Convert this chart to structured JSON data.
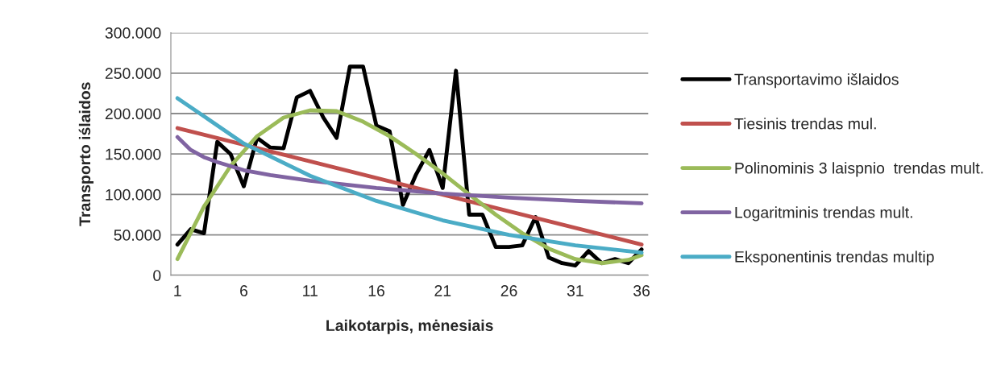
{
  "chart_data": {
    "type": "line",
    "xlabel": "Laikotarpis, mėnesiais",
    "ylabel": "Transporto iślaidos",
    "xlim": [
      0.5,
      36.5
    ],
    "xticks": [
      1,
      6,
      11,
      16,
      21,
      26,
      31,
      36
    ],
    "ylim": [
      0,
      300000
    ],
    "yticks": [
      0,
      {
        "value": 50000,
        "label": "50.000"
      },
      {
        "value": 100000,
        "label": "100.000"
      },
      {
        "value": 150000,
        "label": "150.000"
      },
      {
        "value": 200000,
        "label": "200.000"
      },
      {
        "value": 250000,
        "label": "250.000"
      },
      {
        "value": 300000,
        "label": "300.000"
      }
    ],
    "grid": "y",
    "legend": "right",
    "marker": "none",
    "line_style": "solid",
    "series": [
      {
        "name": "Transportavimo išlaidos",
        "color": "#000000",
        "x": [
          1,
          2,
          3,
          4,
          5,
          6,
          7,
          8,
          9,
          10,
          11,
          12,
          13,
          14,
          15,
          16,
          17,
          18,
          19,
          20,
          21,
          22,
          23,
          24,
          25,
          26,
          27,
          28,
          29,
          30,
          31,
          32,
          33,
          34,
          35,
          36
        ],
        "values": [
          38000,
          57000,
          52000,
          165000,
          150000,
          110000,
          170000,
          158000,
          157000,
          220000,
          228000,
          195000,
          170000,
          258000,
          258000,
          185000,
          178000,
          87000,
          125000,
          155000,
          108000,
          253000,
          75000,
          75000,
          35000,
          35000,
          37000,
          72000,
          22000,
          15000,
          12000,
          30000,
          15000,
          20000,
          15000,
          32000
        ]
      },
      {
        "name": "Tiesinis trendas mul.",
        "color": "#c0504d",
        "x": [
          1,
          36
        ],
        "values": [
          182000,
          38000
        ]
      },
      {
        "name": "Polinominis 3 laispnio  trendas mult.",
        "color": "#9bbb59",
        "x": [
          1,
          3,
          5,
          7,
          9,
          11,
          13,
          15,
          17,
          19,
          21,
          23,
          25,
          27,
          29,
          31,
          33,
          35,
          36
        ],
        "values": [
          20000,
          85000,
          135000,
          172000,
          195000,
          204000,
          203000,
          190000,
          172000,
          150000,
          126000,
          100000,
          75000,
          52000,
          33000,
          20000,
          15000,
          19000,
          25000
        ]
      },
      {
        "name": "Logaritminis trendas mult.",
        "color": "#8064a2",
        "x": [
          1,
          2,
          3,
          4,
          6,
          8,
          11,
          16,
          21,
          26,
          31,
          36
        ],
        "values": [
          171000,
          155000,
          146000,
          140000,
          130000,
          124000,
          117000,
          108000,
          101000,
          96000,
          92000,
          89000
        ]
      },
      {
        "name": "Eksponentinis trendas multip",
        "color": "#4bacc6",
        "x": [
          1,
          6,
          11,
          16,
          21,
          26,
          31,
          36
        ],
        "values": [
          219000,
          163000,
          123000,
          92000,
          68000,
          50000,
          37000,
          28000
        ]
      }
    ]
  }
}
